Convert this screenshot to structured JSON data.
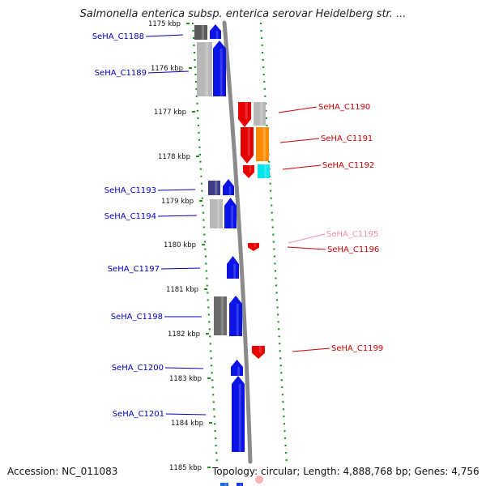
{
  "header": {
    "title": "Salmonella enterica subsp. enterica serovar Heidelberg str. ..."
  },
  "footer": {
    "accession": "Accession: NC_011083",
    "summary": "Topology: circular; Length: 4,888,768 bp; Genes: 4,756"
  },
  "colors": {
    "backbone": "#8a8a8a",
    "dots": "#1f8f1f",
    "forward_label": "#0000bb",
    "reverse_label": "#cc0000",
    "faint_label": "#f08cb4"
  },
  "ticks": [
    "1175 kbp",
    "1176 kbp",
    "1177 kbp",
    "1178 kbp",
    "1179 kbp",
    "1180 kbp",
    "1181 kbp",
    "1182 kbp",
    "1183 kbp",
    "1184 kbp",
    "1185 kbp"
  ],
  "labels": [
    {
      "text": "SeHA_C1188",
      "side": "left",
      "strand": "forward"
    },
    {
      "text": "SeHA_C1189",
      "side": "left",
      "strand": "forward"
    },
    {
      "text": "SeHA_C1190",
      "side": "right",
      "strand": "reverse"
    },
    {
      "text": "SeHA_C1191",
      "side": "right",
      "strand": "reverse"
    },
    {
      "text": "SeHA_C1192",
      "side": "right",
      "strand": "reverse"
    },
    {
      "text": "SeHA_C1193",
      "side": "left",
      "strand": "forward"
    },
    {
      "text": "SeHA_C1194",
      "side": "left",
      "strand": "forward"
    },
    {
      "text": "SeHA_C1195",
      "side": "right",
      "strand": "faint"
    },
    {
      "text": "SeHA_C1196",
      "side": "right",
      "strand": "reverse"
    },
    {
      "text": "SeHA_C1197",
      "side": "left",
      "strand": "forward"
    },
    {
      "text": "SeHA_C1198",
      "side": "left",
      "strand": "forward"
    },
    {
      "text": "SeHA_C1199",
      "side": "right",
      "strand": "reverse"
    },
    {
      "text": "SeHA_C1200",
      "side": "left",
      "strand": "forward"
    },
    {
      "text": "SeHA_C1201",
      "side": "left",
      "strand": "forward"
    }
  ]
}
